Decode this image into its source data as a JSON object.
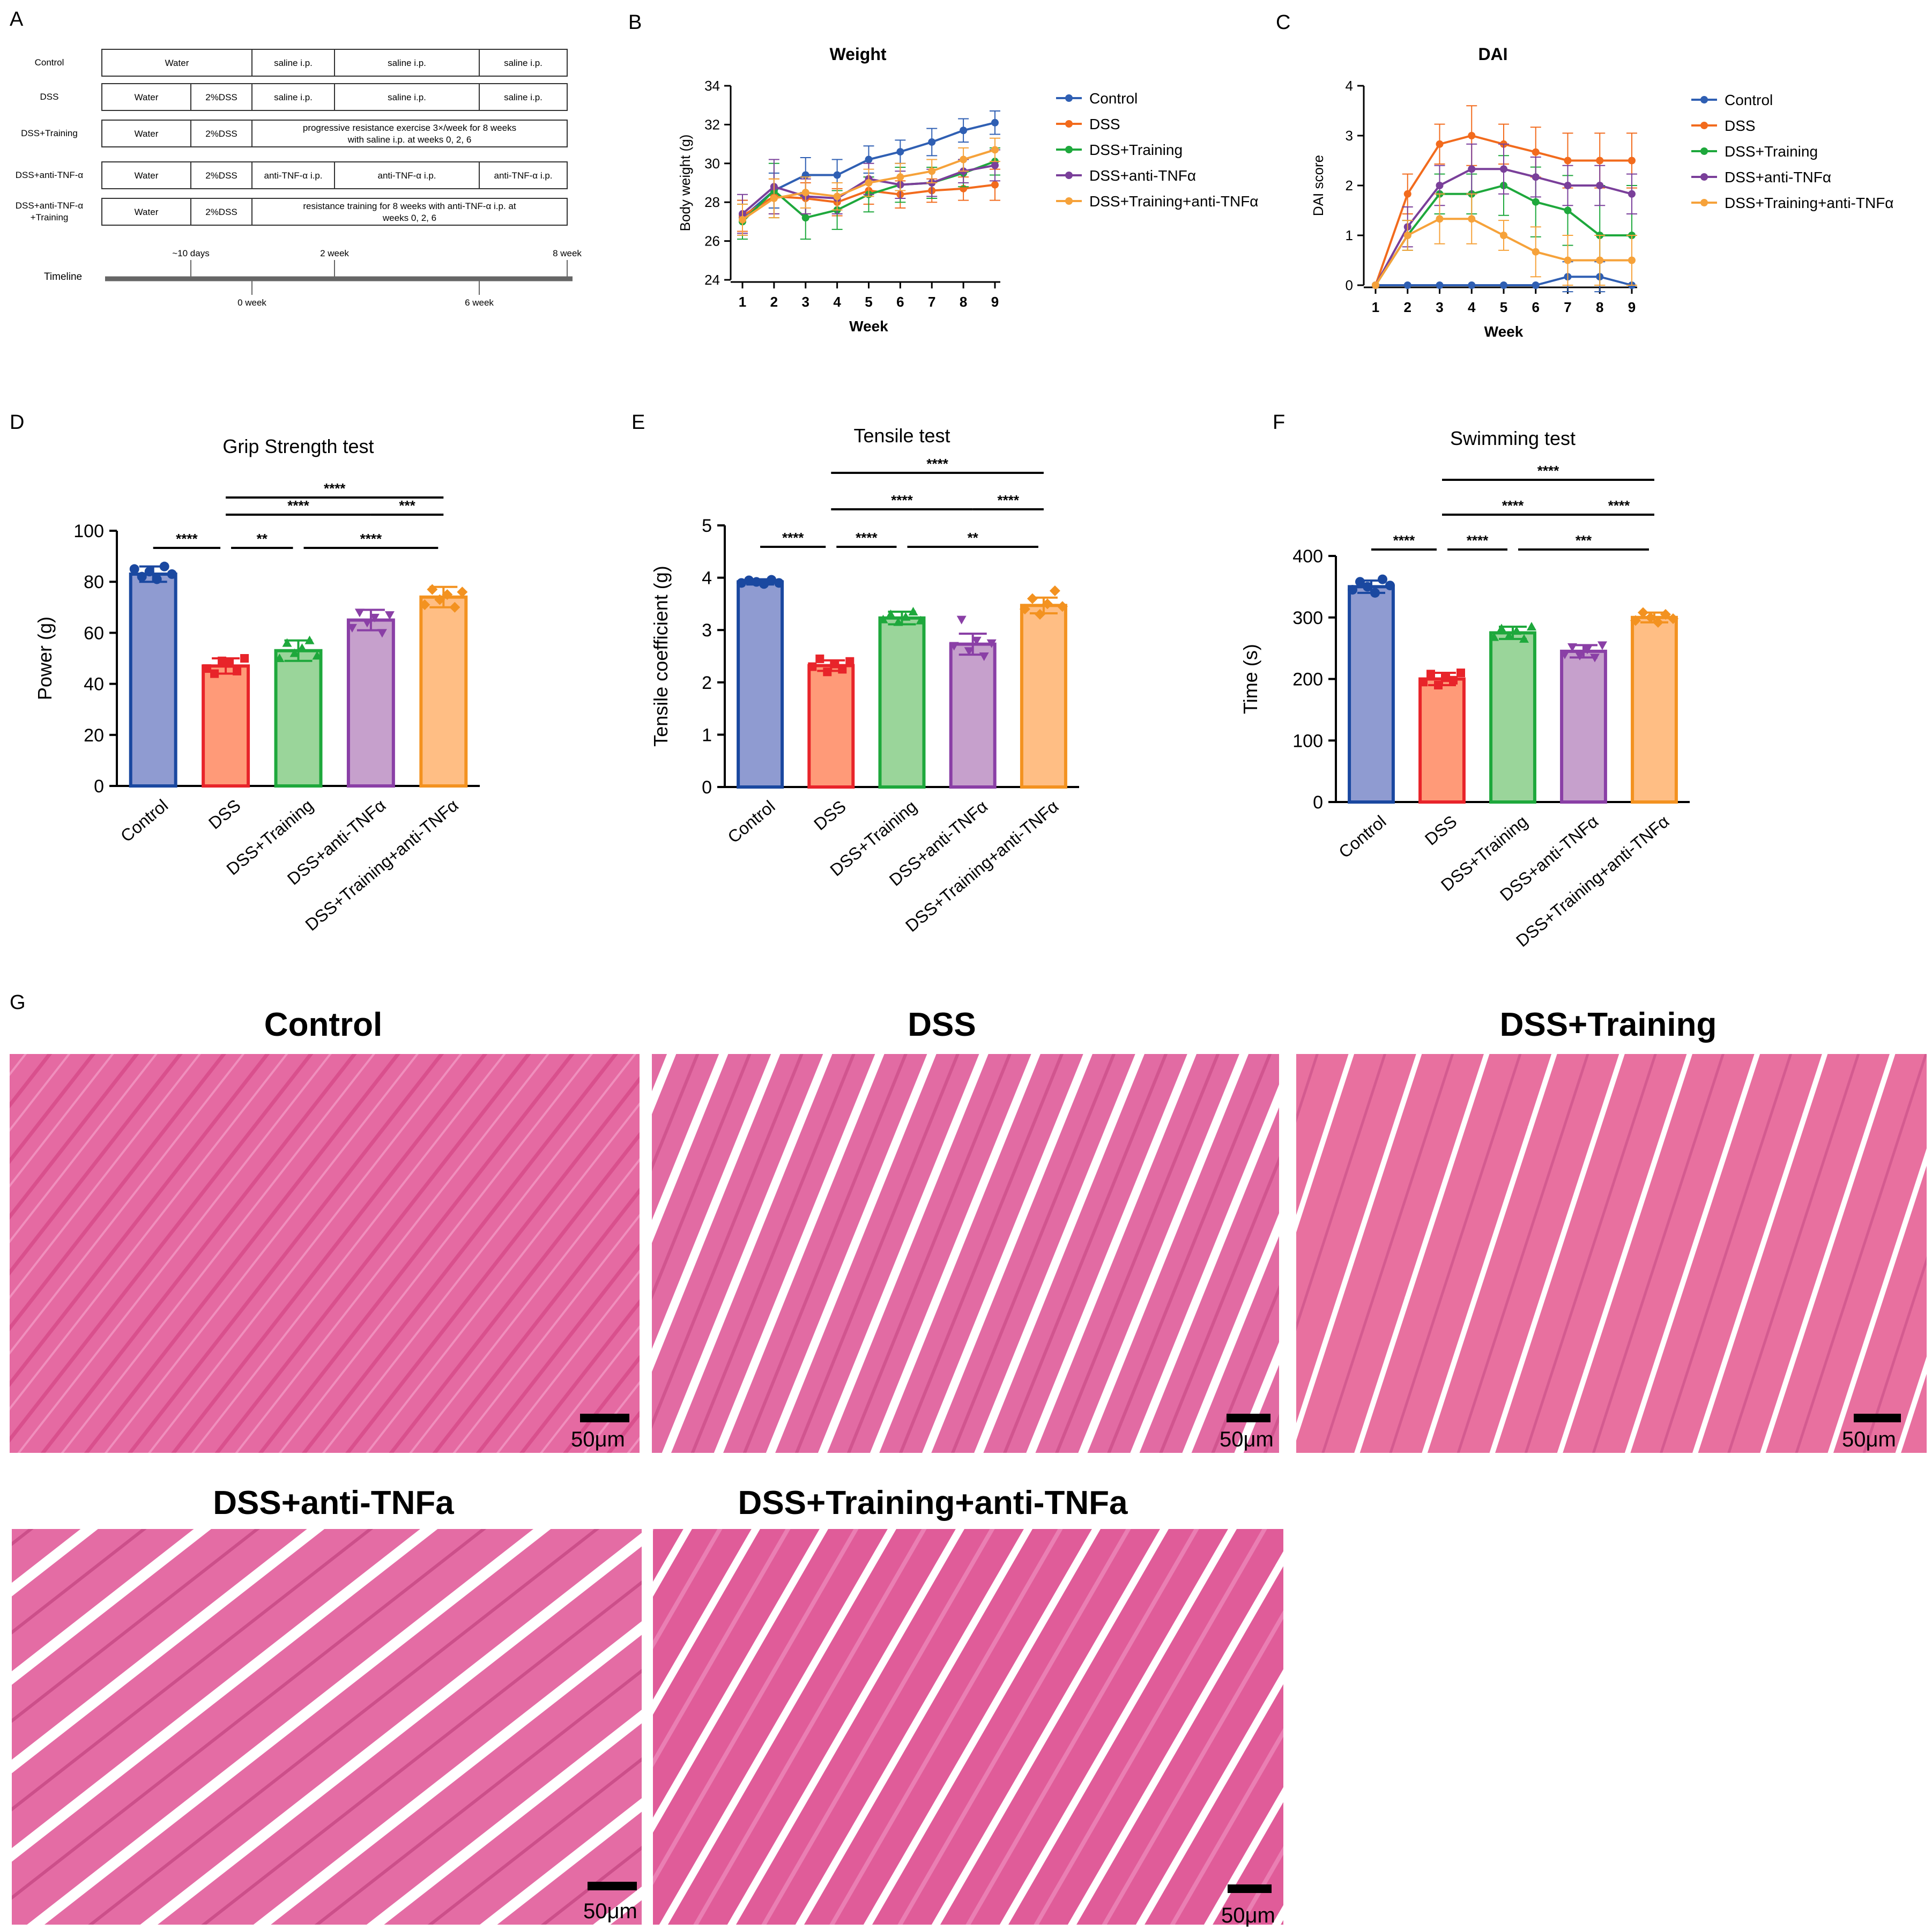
{
  "panels": {
    "A": {
      "letter": "A",
      "rows": [
        {
          "group": "Control",
          "cells": [
            "Water",
            "saline i.p.",
            "saline i.p.",
            "saline i.p."
          ]
        },
        {
          "group": "DSS",
          "cells": [
            "Water",
            "2%DSS",
            "saline i.p.",
            "saline i.p.",
            "saline i.p."
          ]
        },
        {
          "group": "DSS+Training",
          "cells": [
            "Water",
            "2%DSS",
            "progressive resistance exercise 3×/week for 8 weeks|with saline i.p. at weeks 0, 2, 6"
          ]
        },
        {
          "group": "DSS+anti-TNF-α",
          "cells": [
            "Water",
            "2%DSS",
            "anti-TNF-α i.p.",
            "anti-TNF-α i.p.",
            "anti-TNF-α i.p."
          ]
        },
        {
          "group": "DSS+anti-TNF-α|+Training",
          "cells": [
            "Water",
            "2%DSS",
            "resistance training  for 8 weeks with anti-TNF-α i.p. at|weeks 0, 2, 6"
          ]
        }
      ],
      "timeline_label": "Timeline",
      "top_ticks": [
        "~10 days",
        "2 week",
        "8 week"
      ],
      "bottom_ticks": [
        "0 week",
        "6 week"
      ]
    },
    "B": {
      "letter": "B"
    },
    "C": {
      "letter": "C"
    },
    "D": {
      "letter": "D"
    },
    "E": {
      "letter": "E"
    },
    "F": {
      "letter": "F"
    },
    "G": {
      "letter": "G",
      "images": [
        {
          "title": "Control",
          "scale": "50μm"
        },
        {
          "title": "DSS",
          "scale": "50μm"
        },
        {
          "title": "DSS+Training",
          "scale": "50μm"
        },
        {
          "title": "DSS+anti-TNFa",
          "scale": "50μm"
        },
        {
          "title": "DSS+Training+anti-TNFa",
          "scale": "50μm"
        }
      ]
    }
  },
  "chart_data": [
    {
      "id": "B",
      "type": "line",
      "title": "Weight",
      "xlabel": "Week",
      "ylabel": "Body weight (g)",
      "x": [
        1,
        2,
        3,
        4,
        5,
        6,
        7,
        8,
        9
      ],
      "ylim": [
        24,
        34
      ],
      "yticks": [
        24,
        26,
        28,
        30,
        32,
        34
      ],
      "legend_position": "right",
      "series": [
        {
          "name": "Control",
          "color": "#2f5fb3",
          "values": [
            27.2,
            28.6,
            29.4,
            29.4,
            30.2,
            30.6,
            31.1,
            31.7,
            32.1
          ],
          "err": [
            0.9,
            0.9,
            0.9,
            0.8,
            0.7,
            0.6,
            0.7,
            0.6,
            0.6
          ]
        },
        {
          "name": "DSS",
          "color": "#f26b1d",
          "values": [
            27.3,
            28.3,
            28.2,
            28.0,
            28.6,
            28.4,
            28.6,
            28.7,
            28.9
          ],
          "err": [
            0.8,
            0.9,
            0.8,
            0.7,
            0.7,
            0.7,
            0.6,
            0.6,
            0.8
          ]
        },
        {
          "name": "DSS+Training",
          "color": "#1ea83c",
          "values": [
            27.0,
            28.6,
            27.2,
            27.6,
            28.4,
            28.9,
            29.0,
            29.5,
            30.1
          ],
          "err": [
            0.9,
            1.4,
            1.1,
            1.0,
            0.9,
            0.9,
            0.8,
            0.7,
            0.7
          ]
        },
        {
          "name": "DSS+anti-TNFα",
          "color": "#7a3f9a",
          "values": [
            27.4,
            28.8,
            28.3,
            28.2,
            29.2,
            28.9,
            29.0,
            29.6,
            29.9
          ],
          "err": [
            1.0,
            1.4,
            0.9,
            0.8,
            0.8,
            0.7,
            0.7,
            0.6,
            0.8
          ]
        },
        {
          "name": "DSS+Training+anti-TNFα",
          "color": "#f6a23a",
          "values": [
            27.1,
            28.2,
            28.5,
            28.3,
            29.0,
            29.3,
            29.6,
            30.2,
            30.7
          ],
          "err": [
            0.8,
            1.0,
            0.8,
            0.7,
            0.7,
            0.7,
            0.6,
            0.6,
            0.6
          ]
        }
      ]
    },
    {
      "id": "C",
      "type": "line",
      "title": "DAI",
      "xlabel": "Week",
      "ylabel": "DAI score",
      "x": [
        1,
        2,
        3,
        4,
        5,
        6,
        7,
        8,
        9
      ],
      "ylim": [
        0,
        4
      ],
      "yticks": [
        0,
        1,
        2,
        3,
        4
      ],
      "legend_position": "right",
      "series": [
        {
          "name": "Control",
          "color": "#2f5fb3",
          "values": [
            0,
            0,
            0,
            0,
            0,
            0,
            0.17,
            0.17,
            0
          ],
          "err": [
            0,
            0,
            0,
            0,
            0,
            0,
            0.3,
            0.3,
            0
          ]
        },
        {
          "name": "DSS",
          "color": "#f26b1d",
          "values": [
            0,
            1.83,
            2.83,
            3.0,
            2.83,
            2.67,
            2.5,
            2.5,
            2.5
          ],
          "err": [
            0,
            0.4,
            0.4,
            0.6,
            0.4,
            0.5,
            0.55,
            0.55,
            0.55
          ]
        },
        {
          "name": "DSS+Training",
          "color": "#1ea83c",
          "values": [
            0,
            1.0,
            1.83,
            1.83,
            2.0,
            1.67,
            1.5,
            1.0,
            1.0
          ],
          "err": [
            0,
            0.3,
            0.4,
            0.4,
            0.6,
            0.7,
            0.7,
            1.0,
            1.0
          ]
        },
        {
          "name": "DSS+anti-TNFα",
          "color": "#7a3f9a",
          "values": [
            0,
            1.17,
            2.0,
            2.33,
            2.33,
            2.17,
            2.0,
            2.0,
            1.83
          ],
          "err": [
            0,
            0.4,
            0.4,
            0.5,
            0.5,
            0.4,
            0.4,
            0.4,
            0.4
          ]
        },
        {
          "name": "DSS+Training+anti-TNFα",
          "color": "#f6a23a",
          "values": [
            0,
            1.0,
            1.33,
            1.33,
            1.0,
            0.67,
            0.5,
            0.5,
            0.5
          ],
          "err": [
            0,
            0.3,
            0.5,
            0.5,
            0.3,
            0.5,
            0.5,
            0.5,
            0.5
          ]
        }
      ]
    },
    {
      "id": "D",
      "type": "bar",
      "title": "Grip Strength test",
      "ylabel": "Power (g)",
      "categories": [
        "Control",
        "DSS",
        "DSS+Training",
        "DSS+anti-TNFα",
        "DSS+Training+anti-TNFα"
      ],
      "values": [
        83,
        47,
        53,
        65,
        74
      ],
      "err": [
        3,
        3,
        4,
        4,
        4
      ],
      "ylim": [
        0,
        100
      ],
      "yticks": [
        0,
        20,
        40,
        60,
        80,
        100
      ],
      "fill": [
        "#8f9bd1",
        "#ff9a78",
        "#9ad59a",
        "#c6a0cc",
        "#ffbe84"
      ],
      "edge": [
        "#1a48a0",
        "#e8242a",
        "#1ea83c",
        "#8a3fa6",
        "#f39220"
      ],
      "points": [
        [
          85,
          82,
          84,
          81,
          86,
          83
        ],
        [
          46,
          44,
          49,
          48,
          45,
          50
        ],
        [
          50,
          56,
          52,
          54,
          57,
          51
        ],
        [
          62,
          68,
          64,
          66,
          60,
          67
        ],
        [
          71,
          77,
          73,
          75,
          70,
          76
        ]
      ],
      "significance": [
        {
          "from": 0,
          "to": 1,
          "label": "****",
          "level": 0
        },
        {
          "from": 1,
          "to": 2,
          "label": "**",
          "level": 0
        },
        {
          "from": 2,
          "to": 4,
          "label": "****",
          "level": 0
        },
        {
          "from": 1,
          "to": 3,
          "label": "****",
          "level": 1
        },
        {
          "from": 3,
          "to": 4,
          "label": "***",
          "level": 1
        },
        {
          "from": 1,
          "to": 4,
          "label": "****",
          "level": 2
        }
      ]
    },
    {
      "id": "E",
      "type": "bar",
      "title": "Tensile test",
      "ylabel": "Tensile coefficient (g)",
      "categories": [
        "Control",
        "DSS",
        "DSS+Training",
        "DSS+anti-TNFα",
        "DSS+Training+anti-TNFα"
      ],
      "values": [
        3.92,
        2.32,
        3.23,
        2.73,
        3.47
      ],
      "err": [
        0.05,
        0.1,
        0.12,
        0.2,
        0.15
      ],
      "ylim": [
        0,
        5
      ],
      "yticks": [
        0,
        1,
        2,
        3,
        4,
        5
      ],
      "fill": [
        "#8f9bd1",
        "#ff9a78",
        "#9ad59a",
        "#c6a0cc",
        "#ffbe84"
      ],
      "edge": [
        "#1a48a0",
        "#e8242a",
        "#1ea83c",
        "#8a3fa6",
        "#f39220"
      ],
      "points": [
        [
          3.9,
          3.95,
          3.92,
          3.88,
          3.96,
          3.9
        ],
        [
          2.3,
          2.45,
          2.2,
          2.35,
          2.25,
          2.4
        ],
        [
          3.2,
          3.3,
          3.15,
          3.25,
          3.35,
          3.18
        ],
        [
          2.7,
          3.2,
          2.6,
          2.8,
          2.5,
          2.75
        ],
        [
          3.4,
          3.6,
          3.3,
          3.5,
          3.75,
          3.45
        ]
      ],
      "significance": [
        {
          "from": 0,
          "to": 1,
          "label": "****",
          "level": 0
        },
        {
          "from": 1,
          "to": 2,
          "label": "****",
          "level": 0
        },
        {
          "from": 2,
          "to": 4,
          "label": "**",
          "level": 0
        },
        {
          "from": 1,
          "to": 3,
          "label": "****",
          "level": 1
        },
        {
          "from": 3,
          "to": 4,
          "label": "****",
          "level": 1
        },
        {
          "from": 1,
          "to": 4,
          "label": "****",
          "level": 2
        }
      ]
    },
    {
      "id": "F",
      "type": "bar",
      "title": "Swimming test",
      "ylabel": "Time (s)",
      "categories": [
        "Control",
        "DSS",
        "DSS+Training",
        "DSS+anti-TNFα",
        "DSS+Training+anti-TNFα"
      ],
      "values": [
        350,
        200,
        275,
        245,
        300
      ],
      "err": [
        10,
        10,
        10,
        10,
        8
      ],
      "ylim": [
        0,
        400
      ],
      "yticks": [
        0,
        100,
        200,
        300,
        400
      ],
      "fill": [
        "#8f9bd1",
        "#ff9a78",
        "#9ad59a",
        "#c6a0cc",
        "#ffbe84"
      ],
      "edge": [
        "#1a48a0",
        "#e8242a",
        "#1ea83c",
        "#8a3fa6",
        "#f39220"
      ],
      "points": [
        [
          345,
          358,
          350,
          340,
          362,
          352
        ],
        [
          195,
          208,
          190,
          202,
          198,
          210
        ],
        [
          268,
          282,
          270,
          278,
          265,
          285
        ],
        [
          240,
          252,
          238,
          248,
          235,
          255
        ],
        [
          295,
          308,
          300,
          292,
          305,
          298
        ]
      ],
      "significance": [
        {
          "from": 0,
          "to": 1,
          "label": "****",
          "level": 0
        },
        {
          "from": 1,
          "to": 2,
          "label": "****",
          "level": 0
        },
        {
          "from": 2,
          "to": 4,
          "label": "***",
          "level": 0
        },
        {
          "from": 1,
          "to": 3,
          "label": "****",
          "level": 1
        },
        {
          "from": 3,
          "to": 4,
          "label": "****",
          "level": 1
        },
        {
          "from": 1,
          "to": 4,
          "label": "****",
          "level": 2
        }
      ]
    }
  ]
}
